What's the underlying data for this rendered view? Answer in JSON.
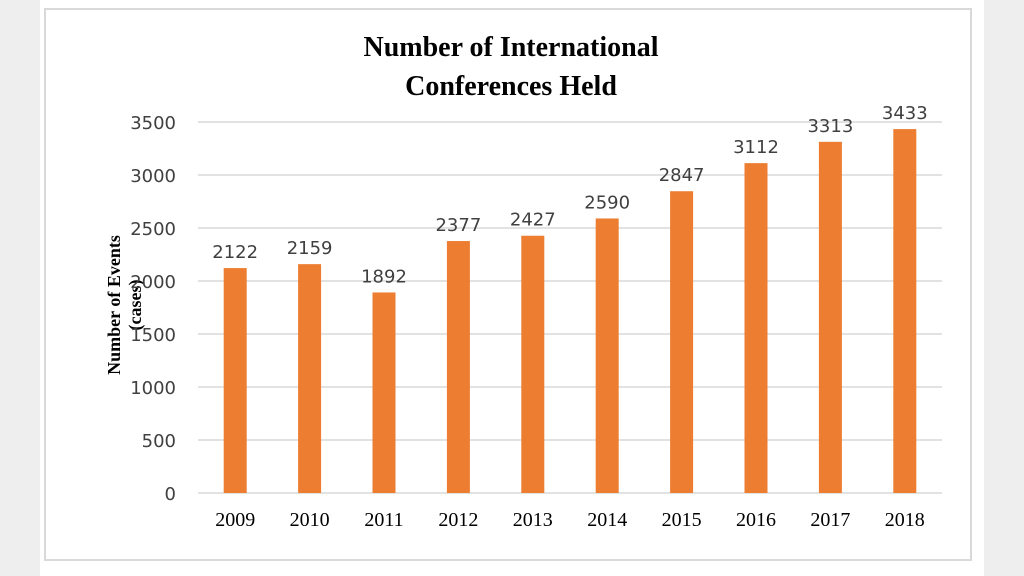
{
  "colors": {
    "bar": "#ED7D31",
    "grid": "#d9d9d9",
    "text": "#404040",
    "title": "#000000"
  },
  "chart_data": {
    "type": "bar",
    "title_lines": [
      "Number of International",
      "Conferences Held"
    ],
    "ylabel_lines": [
      "Number of Events",
      "(cases)"
    ],
    "xlabel": "",
    "categories": [
      "2009",
      "2010",
      "2011",
      "2012",
      "2013",
      "2014",
      "2015",
      "2016",
      "2017",
      "2018"
    ],
    "values": [
      2122,
      2159,
      1892,
      2377,
      2427,
      2590,
      2847,
      3112,
      3313,
      3433
    ],
    "ylim": [
      0,
      3500
    ],
    "yticks": [
      "0",
      "500",
      "1000",
      "1500",
      "2000",
      "2500",
      "3000",
      "3500"
    ],
    "grid": true,
    "legend": "none",
    "data_labels": true
  }
}
